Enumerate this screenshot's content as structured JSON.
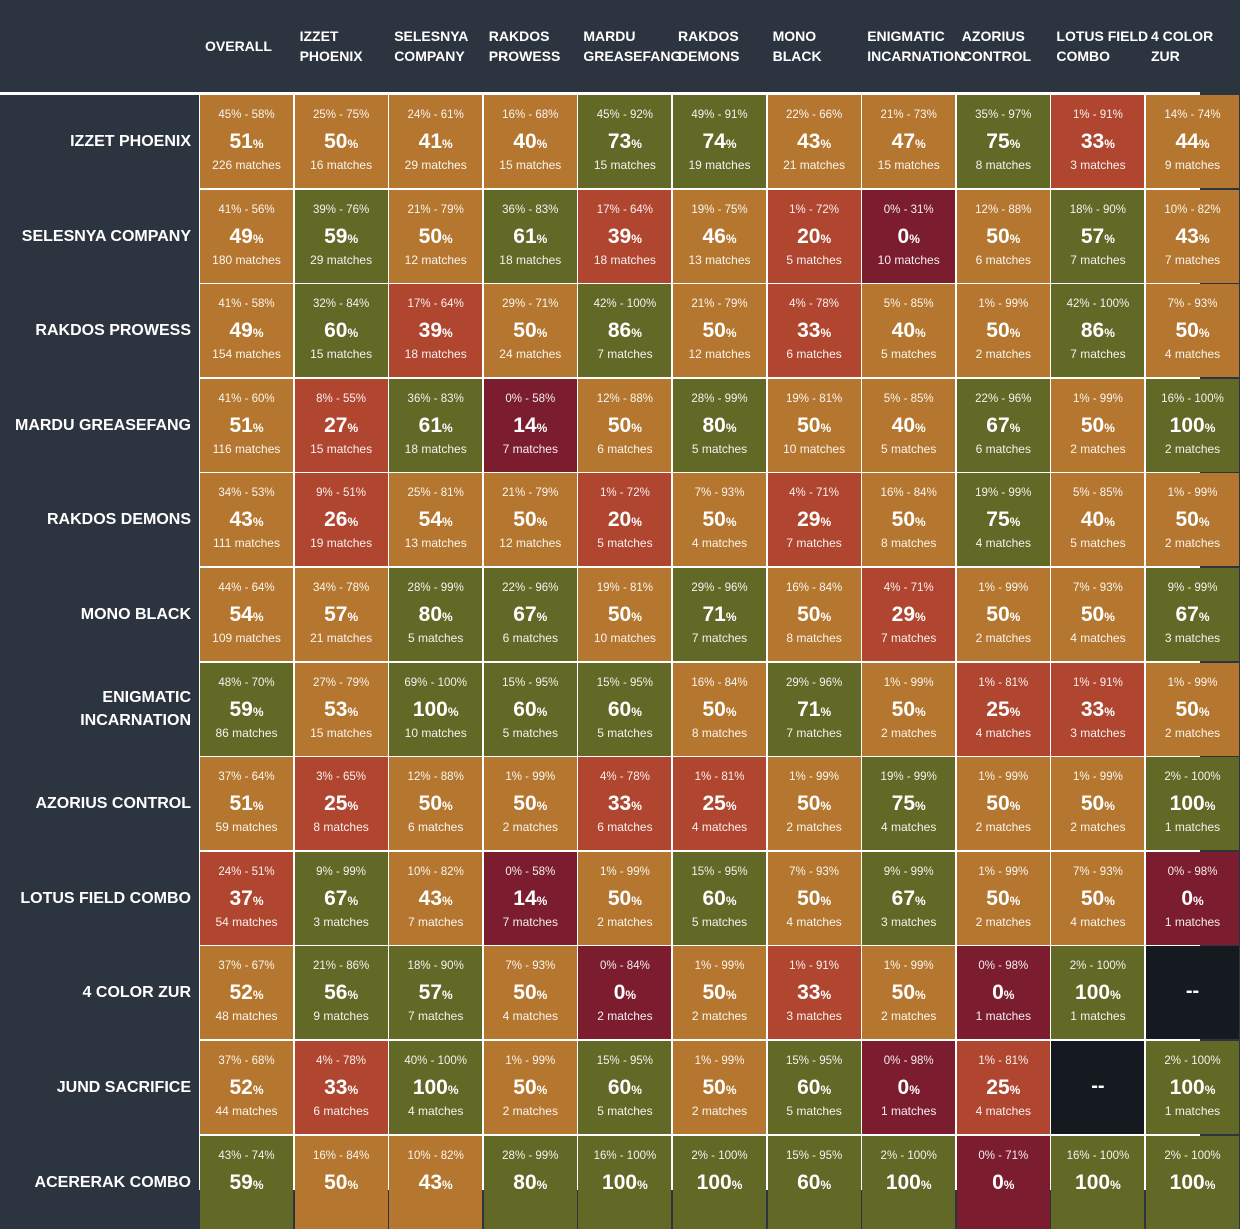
{
  "colors": {
    "background": "#2c3440",
    "grid_line": "#ffffff",
    "orange": "#b5772f",
    "olive": "#626826",
    "red": "#b04630",
    "crimson": "#7b1c2f",
    "empty": "#151a20"
  },
  "columns": [
    [
      "OVERALL"
    ],
    [
      "IZZET",
      "PHOENIX"
    ],
    [
      "SELESNYA",
      "COMPANY"
    ],
    [
      "RAKDOS",
      "PROWESS"
    ],
    [
      "MARDU",
      "GREASEFANG"
    ],
    [
      "RAKDOS",
      "DEMONS"
    ],
    [
      "MONO",
      "BLACK"
    ],
    [
      "ENIGMATIC",
      "INCARNATION"
    ],
    [
      "AZORIUS",
      "CONTROL"
    ],
    [
      "LOTUS FIELD",
      "COMBO"
    ],
    [
      "4 COLOR",
      "ZUR"
    ]
  ],
  "rows": [
    {
      "label": [
        "IZZET PHOENIX"
      ],
      "cells": [
        {
          "r": "45% - 58%",
          "p": "51",
          "n": "226 matches",
          "c": "orange"
        },
        {
          "r": "25% - 75%",
          "p": "50",
          "n": "16 matches",
          "c": "orange"
        },
        {
          "r": "24% - 61%",
          "p": "41",
          "n": "29 matches",
          "c": "orange"
        },
        {
          "r": "16% - 68%",
          "p": "40",
          "n": "15 matches",
          "c": "orange"
        },
        {
          "r": "45% - 92%",
          "p": "73",
          "n": "15 matches",
          "c": "olive"
        },
        {
          "r": "49% - 91%",
          "p": "74",
          "n": "19 matches",
          "c": "olive"
        },
        {
          "r": "22% - 66%",
          "p": "43",
          "n": "21 matches",
          "c": "orange"
        },
        {
          "r": "21% - 73%",
          "p": "47",
          "n": "15 matches",
          "c": "orange"
        },
        {
          "r": "35% - 97%",
          "p": "75",
          "n": "8 matches",
          "c": "olive"
        },
        {
          "r": "1% - 91%",
          "p": "33",
          "n": "3 matches",
          "c": "red"
        },
        {
          "r": "14% - 74%",
          "p": "44",
          "n": "9 matches",
          "c": "orange"
        }
      ]
    },
    {
      "label": [
        "SELESNYA COMPANY"
      ],
      "cells": [
        {
          "r": "41% - 56%",
          "p": "49",
          "n": "180 matches",
          "c": "orange"
        },
        {
          "r": "39% - 76%",
          "p": "59",
          "n": "29 matches",
          "c": "olive"
        },
        {
          "r": "21% - 79%",
          "p": "50",
          "n": "12 matches",
          "c": "orange"
        },
        {
          "r": "36% - 83%",
          "p": "61",
          "n": "18 matches",
          "c": "olive"
        },
        {
          "r": "17% - 64%",
          "p": "39",
          "n": "18 matches",
          "c": "red"
        },
        {
          "r": "19% - 75%",
          "p": "46",
          "n": "13 matches",
          "c": "orange"
        },
        {
          "r": "1% - 72%",
          "p": "20",
          "n": "5 matches",
          "c": "red"
        },
        {
          "r": "0% - 31%",
          "p": "0",
          "n": "10 matches",
          "c": "crimson"
        },
        {
          "r": "12% - 88%",
          "p": "50",
          "n": "6 matches",
          "c": "orange"
        },
        {
          "r": "18% - 90%",
          "p": "57",
          "n": "7 matches",
          "c": "olive"
        },
        {
          "r": "10% - 82%",
          "p": "43",
          "n": "7 matches",
          "c": "orange"
        }
      ]
    },
    {
      "label": [
        "RAKDOS PROWESS"
      ],
      "cells": [
        {
          "r": "41% - 58%",
          "p": "49",
          "n": "154 matches",
          "c": "orange"
        },
        {
          "r": "32% - 84%",
          "p": "60",
          "n": "15 matches",
          "c": "olive"
        },
        {
          "r": "17% - 64%",
          "p": "39",
          "n": "18 matches",
          "c": "red"
        },
        {
          "r": "29% - 71%",
          "p": "50",
          "n": "24 matches",
          "c": "orange"
        },
        {
          "r": "42% - 100%",
          "p": "86",
          "n": "7 matches",
          "c": "olive"
        },
        {
          "r": "21% - 79%",
          "p": "50",
          "n": "12 matches",
          "c": "orange"
        },
        {
          "r": "4% - 78%",
          "p": "33",
          "n": "6 matches",
          "c": "red"
        },
        {
          "r": "5% - 85%",
          "p": "40",
          "n": "5 matches",
          "c": "orange"
        },
        {
          "r": "1% - 99%",
          "p": "50",
          "n": "2 matches",
          "c": "orange"
        },
        {
          "r": "42% - 100%",
          "p": "86",
          "n": "7 matches",
          "c": "olive"
        },
        {
          "r": "7% - 93%",
          "p": "50",
          "n": "4 matches",
          "c": "orange"
        }
      ]
    },
    {
      "label": [
        "MARDU GREASEFANG"
      ],
      "cells": [
        {
          "r": "41% - 60%",
          "p": "51",
          "n": "116 matches",
          "c": "orange"
        },
        {
          "r": "8% - 55%",
          "p": "27",
          "n": "15 matches",
          "c": "red"
        },
        {
          "r": "36% - 83%",
          "p": "61",
          "n": "18 matches",
          "c": "olive"
        },
        {
          "r": "0% - 58%",
          "p": "14",
          "n": "7 matches",
          "c": "crimson"
        },
        {
          "r": "12% - 88%",
          "p": "50",
          "n": "6 matches",
          "c": "orange"
        },
        {
          "r": "28% - 99%",
          "p": "80",
          "n": "5 matches",
          "c": "olive"
        },
        {
          "r": "19% - 81%",
          "p": "50",
          "n": "10 matches",
          "c": "orange"
        },
        {
          "r": "5% - 85%",
          "p": "40",
          "n": "5 matches",
          "c": "orange"
        },
        {
          "r": "22% - 96%",
          "p": "67",
          "n": "6 matches",
          "c": "olive"
        },
        {
          "r": "1% - 99%",
          "p": "50",
          "n": "2 matches",
          "c": "orange"
        },
        {
          "r": "16% - 100%",
          "p": "100",
          "n": "2 matches",
          "c": "olive"
        }
      ]
    },
    {
      "label": [
        "RAKDOS DEMONS"
      ],
      "cells": [
        {
          "r": "34% - 53%",
          "p": "43",
          "n": "111 matches",
          "c": "orange"
        },
        {
          "r": "9% - 51%",
          "p": "26",
          "n": "19 matches",
          "c": "red"
        },
        {
          "r": "25% - 81%",
          "p": "54",
          "n": "13 matches",
          "c": "orange"
        },
        {
          "r": "21% - 79%",
          "p": "50",
          "n": "12 matches",
          "c": "orange"
        },
        {
          "r": "1% - 72%",
          "p": "20",
          "n": "5 matches",
          "c": "red"
        },
        {
          "r": "7% - 93%",
          "p": "50",
          "n": "4 matches",
          "c": "orange"
        },
        {
          "r": "4% - 71%",
          "p": "29",
          "n": "7 matches",
          "c": "red"
        },
        {
          "r": "16% - 84%",
          "p": "50",
          "n": "8 matches",
          "c": "orange"
        },
        {
          "r": "19% - 99%",
          "p": "75",
          "n": "4 matches",
          "c": "olive"
        },
        {
          "r": "5% - 85%",
          "p": "40",
          "n": "5 matches",
          "c": "orange"
        },
        {
          "r": "1% - 99%",
          "p": "50",
          "n": "2 matches",
          "c": "orange"
        }
      ]
    },
    {
      "label": [
        "MONO BLACK"
      ],
      "cells": [
        {
          "r": "44% - 64%",
          "p": "54",
          "n": "109 matches",
          "c": "orange"
        },
        {
          "r": "34% - 78%",
          "p": "57",
          "n": "21 matches",
          "c": "orange"
        },
        {
          "r": "28% - 99%",
          "p": "80",
          "n": "5 matches",
          "c": "olive"
        },
        {
          "r": "22% - 96%",
          "p": "67",
          "n": "6 matches",
          "c": "olive"
        },
        {
          "r": "19% - 81%",
          "p": "50",
          "n": "10 matches",
          "c": "orange"
        },
        {
          "r": "29% - 96%",
          "p": "71",
          "n": "7 matches",
          "c": "olive"
        },
        {
          "r": "16% - 84%",
          "p": "50",
          "n": "8 matches",
          "c": "orange"
        },
        {
          "r": "4% - 71%",
          "p": "29",
          "n": "7 matches",
          "c": "red"
        },
        {
          "r": "1% - 99%",
          "p": "50",
          "n": "2 matches",
          "c": "orange"
        },
        {
          "r": "7% - 93%",
          "p": "50",
          "n": "4 matches",
          "c": "orange"
        },
        {
          "r": "9% - 99%",
          "p": "67",
          "n": "3 matches",
          "c": "olive"
        }
      ]
    },
    {
      "label": [
        "ENIGMATIC",
        "INCARNATION"
      ],
      "cells": [
        {
          "r": "48% - 70%",
          "p": "59",
          "n": "86 matches",
          "c": "olive"
        },
        {
          "r": "27% - 79%",
          "p": "53",
          "n": "15 matches",
          "c": "orange"
        },
        {
          "r": "69% - 100%",
          "p": "100",
          "n": "10 matches",
          "c": "olive"
        },
        {
          "r": "15% - 95%",
          "p": "60",
          "n": "5 matches",
          "c": "olive"
        },
        {
          "r": "15% - 95%",
          "p": "60",
          "n": "5 matches",
          "c": "olive"
        },
        {
          "r": "16% - 84%",
          "p": "50",
          "n": "8 matches",
          "c": "orange"
        },
        {
          "r": "29% - 96%",
          "p": "71",
          "n": "7 matches",
          "c": "olive"
        },
        {
          "r": "1% - 99%",
          "p": "50",
          "n": "2 matches",
          "c": "orange"
        },
        {
          "r": "1% - 81%",
          "p": "25",
          "n": "4 matches",
          "c": "red"
        },
        {
          "r": "1% - 91%",
          "p": "33",
          "n": "3 matches",
          "c": "red"
        },
        {
          "r": "1% - 99%",
          "p": "50",
          "n": "2 matches",
          "c": "orange"
        }
      ]
    },
    {
      "label": [
        "AZORIUS CONTROL"
      ],
      "cells": [
        {
          "r": "37% - 64%",
          "p": "51",
          "n": "59 matches",
          "c": "orange"
        },
        {
          "r": "3% - 65%",
          "p": "25",
          "n": "8 matches",
          "c": "red"
        },
        {
          "r": "12% - 88%",
          "p": "50",
          "n": "6 matches",
          "c": "orange"
        },
        {
          "r": "1% - 99%",
          "p": "50",
          "n": "2 matches",
          "c": "orange"
        },
        {
          "r": "4% - 78%",
          "p": "33",
          "n": "6 matches",
          "c": "red"
        },
        {
          "r": "1% - 81%",
          "p": "25",
          "n": "4 matches",
          "c": "red"
        },
        {
          "r": "1% - 99%",
          "p": "50",
          "n": "2 matches",
          "c": "orange"
        },
        {
          "r": "19% - 99%",
          "p": "75",
          "n": "4 matches",
          "c": "olive"
        },
        {
          "r": "1% - 99%",
          "p": "50",
          "n": "2 matches",
          "c": "orange"
        },
        {
          "r": "1% - 99%",
          "p": "50",
          "n": "2 matches",
          "c": "orange"
        },
        {
          "r": "2% - 100%",
          "p": "100",
          "n": "1 matches",
          "c": "olive"
        }
      ]
    },
    {
      "label": [
        "LOTUS FIELD COMBO"
      ],
      "cells": [
        {
          "r": "24% - 51%",
          "p": "37",
          "n": "54 matches",
          "c": "red"
        },
        {
          "r": "9% - 99%",
          "p": "67",
          "n": "3 matches",
          "c": "olive"
        },
        {
          "r": "10% - 82%",
          "p": "43",
          "n": "7 matches",
          "c": "orange"
        },
        {
          "r": "0% - 58%",
          "p": "14",
          "n": "7 matches",
          "c": "crimson"
        },
        {
          "r": "1% - 99%",
          "p": "50",
          "n": "2 matches",
          "c": "orange"
        },
        {
          "r": "15% - 95%",
          "p": "60",
          "n": "5 matches",
          "c": "olive"
        },
        {
          "r": "7% - 93%",
          "p": "50",
          "n": "4 matches",
          "c": "orange"
        },
        {
          "r": "9% - 99%",
          "p": "67",
          "n": "3 matches",
          "c": "olive"
        },
        {
          "r": "1% - 99%",
          "p": "50",
          "n": "2 matches",
          "c": "orange"
        },
        {
          "r": "7% - 93%",
          "p": "50",
          "n": "4 matches",
          "c": "orange"
        },
        {
          "r": "0% - 98%",
          "p": "0",
          "n": "1 matches",
          "c": "crimson"
        }
      ]
    },
    {
      "label": [
        "4 COLOR ZUR"
      ],
      "cells": [
        {
          "r": "37% - 67%",
          "p": "52",
          "n": "48 matches",
          "c": "orange"
        },
        {
          "r": "21% - 86%",
          "p": "56",
          "n": "9 matches",
          "c": "olive"
        },
        {
          "r": "18% - 90%",
          "p": "57",
          "n": "7 matches",
          "c": "olive"
        },
        {
          "r": "7% - 93%",
          "p": "50",
          "n": "4 matches",
          "c": "orange"
        },
        {
          "r": "0% - 84%",
          "p": "0",
          "n": "2 matches",
          "c": "crimson"
        },
        {
          "r": "1% - 99%",
          "p": "50",
          "n": "2 matches",
          "c": "orange"
        },
        {
          "r": "1% - 91%",
          "p": "33",
          "n": "3 matches",
          "c": "red"
        },
        {
          "r": "1% - 99%",
          "p": "50",
          "n": "2 matches",
          "c": "orange"
        },
        {
          "r": "0% - 98%",
          "p": "0",
          "n": "1 matches",
          "c": "crimson"
        },
        {
          "r": "2% - 100%",
          "p": "100",
          "n": "1 matches",
          "c": "olive"
        },
        {
          "empty": true,
          "text": "--"
        }
      ]
    },
    {
      "label": [
        "JUND SACRIFICE"
      ],
      "cells": [
        {
          "r": "37% - 68%",
          "p": "52",
          "n": "44 matches",
          "c": "orange"
        },
        {
          "r": "4% - 78%",
          "p": "33",
          "n": "6 matches",
          "c": "red"
        },
        {
          "r": "40% - 100%",
          "p": "100",
          "n": "4 matches",
          "c": "olive"
        },
        {
          "r": "1% - 99%",
          "p": "50",
          "n": "2 matches",
          "c": "orange"
        },
        {
          "r": "15% - 95%",
          "p": "60",
          "n": "5 matches",
          "c": "olive"
        },
        {
          "r": "1% - 99%",
          "p": "50",
          "n": "2 matches",
          "c": "orange"
        },
        {
          "r": "15% - 95%",
          "p": "60",
          "n": "5 matches",
          "c": "olive"
        },
        {
          "r": "0% - 98%",
          "p": "0",
          "n": "1 matches",
          "c": "crimson"
        },
        {
          "r": "1% - 81%",
          "p": "25",
          "n": "4 matches",
          "c": "red"
        },
        {
          "empty": true,
          "text": "--"
        },
        {
          "r": "2% - 100%",
          "p": "100",
          "n": "1 matches",
          "c": "olive"
        }
      ]
    },
    {
      "label": [
        "ACERERAK COMBO"
      ],
      "cells": [
        {
          "r": "43% - 74%",
          "p": "59",
          "n": "",
          "c": "olive"
        },
        {
          "r": "16% - 84%",
          "p": "50",
          "n": "",
          "c": "orange"
        },
        {
          "r": "10% - 82%",
          "p": "43",
          "n": "",
          "c": "orange"
        },
        {
          "r": "28% - 99%",
          "p": "80",
          "n": "",
          "c": "olive"
        },
        {
          "r": "16% - 100%",
          "p": "100",
          "n": "",
          "c": "olive"
        },
        {
          "r": "2% - 100%",
          "p": "100",
          "n": "",
          "c": "olive"
        },
        {
          "r": "15% - 95%",
          "p": "60",
          "n": "",
          "c": "olive"
        },
        {
          "r": "2% - 100%",
          "p": "100",
          "n": "",
          "c": "olive"
        },
        {
          "r": "0% - 71%",
          "p": "0",
          "n": "",
          "c": "crimson"
        },
        {
          "r": "16% - 100%",
          "p": "100",
          "n": "",
          "c": "olive"
        },
        {
          "r": "2% - 100%",
          "p": "100",
          "n": "",
          "c": "olive"
        }
      ]
    }
  ]
}
